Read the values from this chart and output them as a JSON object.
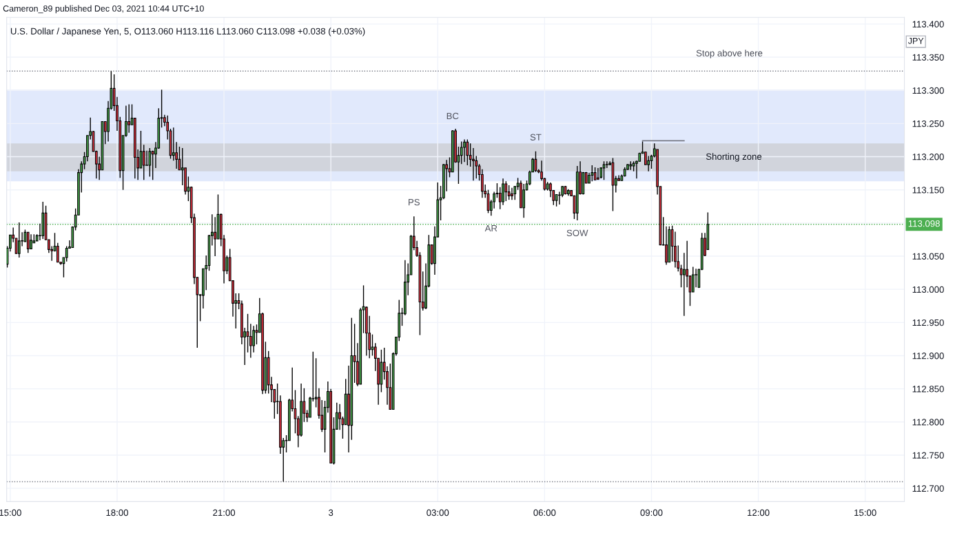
{
  "chart_data": {
    "type": "candlestick",
    "title": "U.S. Dollar / Japanese Yen, 5, O113.060 H113.116 L113.060 C113.098 +0.038 (+0.03%)",
    "annotations": [
      "Cameron_89 published Dec 03, 2021 10:44 UTC+10",
      "JPY",
      {
        "text": "PS",
        "x": "2021-12-03T02:20",
        "y": 113.11
      },
      {
        "text": "BC",
        "x": "2021-12-03T03:25",
        "y": 113.24
      },
      {
        "text": "AR",
        "x": "2021-12-03T04:30",
        "y": 113.111
      },
      {
        "text": "ST",
        "x": "2021-12-03T05:45",
        "y": 113.208
      },
      {
        "text": "SOW",
        "x": "2021-12-03T06:55",
        "y": 113.104
      }
    ],
    "x": [
      "2021-12-02T14:55",
      "2021-12-02T15:00",
      "2021-12-02T15:05",
      "2021-12-02T15:10",
      "2021-12-02T15:15",
      "2021-12-02T15:20",
      "2021-12-02T15:25",
      "2021-12-02T15:30",
      "2021-12-02T15:35",
      "2021-12-02T15:40",
      "2021-12-02T15:45",
      "2021-12-02T15:50",
      "2021-12-02T15:55",
      "2021-12-02T16:00",
      "2021-12-02T16:05",
      "2021-12-02T16:10",
      "2021-12-02T16:15",
      "2021-12-02T16:20",
      "2021-12-02T16:25",
      "2021-12-02T16:30",
      "2021-12-02T16:35",
      "2021-12-02T16:40",
      "2021-12-02T16:45",
      "2021-12-02T16:50",
      "2021-12-02T16:55",
      "2021-12-02T17:00",
      "2021-12-02T17:05",
      "2021-12-02T17:10",
      "2021-12-02T17:15",
      "2021-12-02T17:20",
      "2021-12-02T17:25",
      "2021-12-02T17:30",
      "2021-12-02T17:35",
      "2021-12-02T17:40",
      "2021-12-02T17:45",
      "2021-12-02T17:50",
      "2021-12-02T17:55",
      "2021-12-02T18:00",
      "2021-12-02T18:05",
      "2021-12-02T18:10",
      "2021-12-02T18:15",
      "2021-12-02T18:20",
      "2021-12-02T18:25",
      "2021-12-02T18:30",
      "2021-12-02T18:35",
      "2021-12-02T18:40",
      "2021-12-02T18:45",
      "2021-12-02T18:50",
      "2021-12-02T18:55",
      "2021-12-02T19:00",
      "2021-12-02T19:05",
      "2021-12-02T19:10",
      "2021-12-02T19:15",
      "2021-12-02T19:20",
      "2021-12-02T19:25",
      "2021-12-02T19:30",
      "2021-12-02T19:35",
      "2021-12-02T19:40",
      "2021-12-02T19:45",
      "2021-12-02T19:50",
      "2021-12-02T19:55",
      "2021-12-02T20:00",
      "2021-12-02T20:05",
      "2021-12-02T20:10",
      "2021-12-02T20:15",
      "2021-12-02T20:20",
      "2021-12-02T20:25",
      "2021-12-02T20:30",
      "2021-12-02T20:35",
      "2021-12-02T20:40",
      "2021-12-02T20:45",
      "2021-12-02T20:50",
      "2021-12-02T20:55",
      "2021-12-02T21:00",
      "2021-12-02T21:05",
      "2021-12-02T21:10",
      "2021-12-02T21:15",
      "2021-12-02T21:20",
      "2021-12-02T21:25",
      "2021-12-02T21:30",
      "2021-12-02T21:35",
      "2021-12-02T21:40",
      "2021-12-02T21:45",
      "2021-12-02T21:50",
      "2021-12-02T21:55",
      "2021-12-02T22:00",
      "2021-12-02T22:05",
      "2021-12-02T22:10",
      "2021-12-02T22:15",
      "2021-12-02T22:20",
      "2021-12-02T22:25",
      "2021-12-02T22:30",
      "2021-12-02T22:35",
      "2021-12-02T22:40",
      "2021-12-02T22:45",
      "2021-12-02T22:50",
      "2021-12-02T22:55",
      "2021-12-02T23:00",
      "2021-12-02T23:05",
      "2021-12-02T23:10",
      "2021-12-02T23:15",
      "2021-12-02T23:20",
      "2021-12-02T23:25",
      "2021-12-02T23:30",
      "2021-12-02T23:35",
      "2021-12-02T23:40",
      "2021-12-02T23:45",
      "2021-12-02T23:50",
      "2021-12-02T23:55",
      "2021-12-03T00:00",
      "2021-12-03T00:05",
      "2021-12-03T00:10",
      "2021-12-03T00:15",
      "2021-12-03T00:20",
      "2021-12-03T00:25",
      "2021-12-03T00:30",
      "2021-12-03T00:35",
      "2021-12-03T00:40",
      "2021-12-03T00:45",
      "2021-12-03T00:50",
      "2021-12-03T00:55",
      "2021-12-03T01:00",
      "2021-12-03T01:05",
      "2021-12-03T01:10",
      "2021-12-03T01:15",
      "2021-12-03T01:20",
      "2021-12-03T01:25",
      "2021-12-03T01:30",
      "2021-12-03T01:35",
      "2021-12-03T01:40",
      "2021-12-03T01:45",
      "2021-12-03T01:50",
      "2021-12-03T01:55",
      "2021-12-03T02:00",
      "2021-12-03T02:05",
      "2021-12-03T02:10",
      "2021-12-03T02:15",
      "2021-12-03T02:20",
      "2021-12-03T02:25",
      "2021-12-03T02:30",
      "2021-12-03T02:35",
      "2021-12-03T02:40",
      "2021-12-03T02:45",
      "2021-12-03T02:50",
      "2021-12-03T02:55",
      "2021-12-03T03:00",
      "2021-12-03T03:05",
      "2021-12-03T03:10",
      "2021-12-03T03:15",
      "2021-12-03T03:20",
      "2021-12-03T03:25",
      "2021-12-03T03:30",
      "2021-12-03T03:35",
      "2021-12-03T03:40",
      "2021-12-03T03:45",
      "2021-12-03T03:50",
      "2021-12-03T03:55",
      "2021-12-03T04:00",
      "2021-12-03T04:05",
      "2021-12-03T04:10",
      "2021-12-03T04:15",
      "2021-12-03T04:20",
      "2021-12-03T04:25",
      "2021-12-03T04:30",
      "2021-12-03T04:35",
      "2021-12-03T04:40",
      "2021-12-03T04:45",
      "2021-12-03T04:50",
      "2021-12-03T04:55",
      "2021-12-03T05:00",
      "2021-12-03T05:05",
      "2021-12-03T05:10",
      "2021-12-03T05:15",
      "2021-12-03T05:20",
      "2021-12-03T05:25",
      "2021-12-03T05:30",
      "2021-12-03T05:35",
      "2021-12-03T05:40",
      "2021-12-03T05:45",
      "2021-12-03T05:50",
      "2021-12-03T05:55",
      "2021-12-03T06:00",
      "2021-12-03T06:05",
      "2021-12-03T06:10",
      "2021-12-03T06:15",
      "2021-12-03T06:20",
      "2021-12-03T06:25",
      "2021-12-03T06:30",
      "2021-12-03T06:35",
      "2021-12-03T06:40",
      "2021-12-03T06:45",
      "2021-12-03T06:50",
      "2021-12-03T06:55",
      "2021-12-03T07:00",
      "2021-12-03T07:05",
      "2021-12-03T07:10",
      "2021-12-03T07:15",
      "2021-12-03T07:20",
      "2021-12-03T07:25",
      "2021-12-03T07:30",
      "2021-12-03T07:35",
      "2021-12-03T07:40",
      "2021-12-03T07:45",
      "2021-12-03T07:50",
      "2021-12-03T07:55",
      "2021-12-03T08:00",
      "2021-12-03T08:05",
      "2021-12-03T08:10",
      "2021-12-03T08:15",
      "2021-12-03T08:20",
      "2021-12-03T08:25",
      "2021-12-03T08:30",
      "2021-12-03T08:35",
      "2021-12-03T08:40",
      "2021-12-03T08:45",
      "2021-12-03T08:50",
      "2021-12-03T08:55",
      "2021-12-03T09:00",
      "2021-12-03T09:05",
      "2021-12-03T09:10",
      "2021-12-03T09:15",
      "2021-12-03T09:20",
      "2021-12-03T09:25",
      "2021-12-03T09:30",
      "2021-12-03T09:35",
      "2021-12-03T09:40",
      "2021-12-03T09:45",
      "2021-12-03T09:50",
      "2021-12-03T09:55",
      "2021-12-03T10:00",
      "2021-12-03T10:05",
      "2021-12-03T10:10",
      "2021-12-03T10:15",
      "2021-12-03T10:20",
      "2021-12-03T10:25",
      "2021-12-03T10:30",
      "2021-12-03T10:35"
    ],
    "ohlc": [
      [
        113.038,
        113.065,
        113.033,
        113.062
      ],
      [
        113.062,
        113.082,
        113.057,
        113.082
      ],
      [
        113.082,
        113.093,
        113.071,
        113.077
      ],
      [
        113.077,
        113.077,
        113.054,
        113.054
      ],
      [
        113.054,
        113.101,
        113.048,
        113.073
      ],
      [
        113.073,
        113.086,
        113.065,
        113.073
      ],
      [
        113.072,
        113.09,
        113.072,
        113.086
      ],
      [
        113.086,
        113.086,
        113.055,
        113.061
      ],
      [
        113.061,
        113.083,
        113.061,
        113.074
      ],
      [
        113.07,
        113.083,
        113.07,
        113.073
      ],
      [
        113.073,
        113.083,
        113.073,
        113.081
      ],
      [
        113.081,
        113.099,
        113.074,
        113.081
      ],
      [
        113.081,
        113.132,
        113.076,
        113.115
      ],
      [
        113.115,
        113.126,
        113.074,
        113.075
      ],
      [
        113.075,
        113.075,
        113.055,
        113.06
      ],
      [
        113.06,
        113.065,
        113.043,
        113.058
      ],
      [
        113.058,
        113.085,
        113.057,
        113.065
      ],
      [
        113.065,
        113.07,
        113.041,
        113.041
      ],
      [
        113.041,
        113.041,
        113.037,
        113.039
      ],
      [
        113.039,
        113.048,
        113.018,
        113.048
      ],
      [
        113.048,
        113.065,
        113.042,
        113.062
      ],
      [
        113.062,
        113.074,
        113.062,
        113.064
      ],
      [
        113.063,
        113.095,
        113.063,
        113.094
      ],
      [
        113.094,
        113.122,
        113.089,
        113.112
      ],
      [
        113.112,
        113.181,
        113.112,
        113.176
      ],
      [
        113.176,
        113.193,
        113.146,
        113.189
      ],
      [
        113.189,
        113.207,
        113.181,
        113.2
      ],
      [
        113.2,
        113.232,
        113.193,
        113.232
      ],
      [
        113.232,
        113.259,
        113.226,
        113.238
      ],
      [
        113.238,
        113.239,
        113.208,
        113.208
      ],
      [
        113.208,
        113.209,
        113.167,
        113.189
      ],
      [
        113.189,
        113.2,
        113.165,
        113.18
      ],
      [
        113.18,
        113.253,
        113.18,
        113.253
      ],
      [
        113.253,
        113.253,
        113.219,
        113.238
      ],
      [
        113.238,
        113.284,
        113.223,
        113.273
      ],
      [
        113.273,
        113.329,
        113.271,
        113.303
      ],
      [
        113.303,
        113.324,
        113.269,
        113.277
      ],
      [
        113.277,
        113.29,
        113.239,
        113.254
      ],
      [
        113.254,
        113.26,
        113.168,
        113.179
      ],
      [
        113.179,
        113.232,
        113.15,
        113.232
      ],
      [
        113.232,
        113.277,
        113.23,
        113.253
      ],
      [
        113.253,
        113.279,
        113.236,
        113.248
      ],
      [
        113.248,
        113.279,
        113.248,
        113.258
      ],
      [
        113.258,
        113.258,
        113.167,
        113.199
      ],
      [
        113.199,
        113.211,
        113.165,
        113.183
      ],
      [
        113.183,
        113.239,
        113.183,
        113.208
      ],
      [
        113.208,
        113.218,
        113.165,
        113.187
      ],
      [
        113.187,
        113.209,
        113.187,
        113.187
      ],
      [
        113.187,
        113.213,
        113.17,
        113.208
      ],
      [
        113.208,
        113.209,
        113.165,
        113.204
      ],
      [
        113.204,
        113.222,
        113.183,
        113.213
      ],
      [
        113.213,
        113.273,
        113.212,
        113.258
      ],
      [
        113.258,
        113.301,
        113.244,
        113.259
      ],
      [
        113.259,
        113.263,
        113.246,
        113.252
      ],
      [
        113.252,
        113.262,
        113.226,
        113.239
      ],
      [
        113.239,
        113.242,
        113.197,
        113.202
      ],
      [
        113.202,
        113.244,
        113.194,
        113.206
      ],
      [
        113.206,
        113.222,
        113.182,
        113.196
      ],
      [
        113.196,
        113.215,
        113.18,
        113.18
      ],
      [
        113.18,
        113.213,
        113.157,
        113.183
      ],
      [
        113.183,
        113.183,
        113.143,
        113.148
      ],
      [
        113.148,
        113.17,
        113.133,
        113.154
      ],
      [
        113.154,
        113.155,
        113.1,
        113.108
      ],
      [
        113.108,
        113.114,
        113.008,
        113.018
      ],
      [
        113.018,
        113.018,
        112.912,
        112.992
      ],
      [
        112.992,
        112.992,
        112.952,
        112.991
      ],
      [
        112.991,
        113.031,
        112.971,
        113.031
      ],
      [
        113.031,
        113.051,
        112.999,
        113.036
      ],
      [
        113.036,
        113.082,
        113.028,
        113.081
      ],
      [
        113.081,
        113.113,
        113.066,
        113.086
      ],
      [
        113.086,
        113.109,
        113.05,
        113.076
      ],
      [
        113.076,
        113.143,
        113.076,
        113.113
      ],
      [
        113.113,
        113.114,
        113.065,
        113.076
      ],
      [
        113.076,
        113.082,
        113.009,
        113.028
      ],
      [
        113.028,
        113.051,
        113.023,
        113.048
      ],
      [
        113.048,
        113.061,
        113.013,
        113.013
      ],
      [
        113.013,
        113.013,
        112.959,
        112.979
      ],
      [
        112.979,
        112.994,
        112.941,
        112.983
      ],
      [
        112.983,
        112.994,
        112.97,
        112.979
      ],
      [
        112.978,
        112.983,
        112.917,
        112.928
      ],
      [
        112.928,
        112.942,
        112.886,
        112.936
      ],
      [
        112.936,
        112.963,
        112.905,
        112.929
      ],
      [
        112.929,
        112.948,
        112.897,
        112.915
      ],
      [
        112.915,
        112.945,
        112.905,
        112.938
      ],
      [
        112.938,
        112.947,
        112.917,
        112.935
      ],
      [
        112.935,
        112.987,
        112.935,
        112.963
      ],
      [
        112.963,
        112.965,
        112.842,
        112.848
      ],
      [
        112.848,
        112.921,
        112.843,
        112.897
      ],
      [
        112.897,
        112.907,
        112.843,
        112.856
      ],
      [
        112.856,
        112.868,
        112.83,
        112.849
      ],
      [
        112.849,
        112.849,
        112.805,
        112.83
      ],
      [
        112.831,
        112.858,
        112.812,
        112.831
      ],
      [
        112.831,
        112.84,
        112.752,
        112.762
      ],
      [
        112.762,
        112.776,
        112.71,
        112.772
      ],
      [
        112.772,
        112.78,
        112.754,
        112.772
      ],
      [
        112.772,
        112.835,
        112.772,
        112.833
      ],
      [
        112.833,
        112.882,
        112.816,
        112.82
      ],
      [
        112.82,
        112.848,
        112.783,
        112.805
      ],
      [
        112.805,
        112.809,
        112.762,
        112.78
      ],
      [
        112.78,
        112.858,
        112.778,
        112.831
      ],
      [
        112.831,
        112.851,
        112.8,
        112.813
      ],
      [
        112.813,
        112.818,
        112.8,
        112.807
      ],
      [
        112.807,
        112.838,
        112.807,
        112.836
      ],
      [
        112.835,
        112.906,
        112.831,
        112.835
      ],
      [
        112.835,
        112.896,
        112.822,
        112.837
      ],
      [
        112.837,
        112.851,
        112.805,
        112.81
      ],
      [
        112.81,
        112.833,
        112.785,
        112.789
      ],
      [
        112.789,
        112.832,
        112.754,
        112.822
      ],
      [
        112.822,
        112.861,
        112.814,
        112.846
      ],
      [
        112.846,
        112.85,
        112.738,
        112.738
      ],
      [
        112.738,
        112.807,
        112.736,
        112.789
      ],
      [
        112.789,
        112.829,
        112.789,
        112.814
      ],
      [
        112.814,
        112.827,
        112.788,
        112.805
      ],
      [
        112.805,
        112.808,
        112.775,
        112.796
      ],
      [
        112.796,
        112.865,
        112.796,
        112.842
      ],
      [
        112.842,
        112.885,
        112.754,
        112.795
      ],
      [
        112.795,
        112.957,
        112.773,
        112.9
      ],
      [
        112.9,
        112.948,
        112.859,
        112.891
      ],
      [
        112.891,
        112.919,
        112.854,
        112.857
      ],
      [
        112.857,
        112.972,
        112.857,
        112.969
      ],
      [
        112.969,
        113.006,
        112.934,
        112.974
      ],
      [
        112.973,
        112.974,
        112.9,
        112.934
      ],
      [
        112.934,
        112.96,
        112.896,
        112.909
      ],
      [
        112.909,
        112.932,
        112.9,
        112.913
      ],
      [
        112.913,
        112.919,
        112.877,
        112.896
      ],
      [
        112.896,
        112.896,
        112.826,
        112.857
      ],
      [
        112.857,
        112.909,
        112.845,
        112.89
      ],
      [
        112.89,
        112.912,
        112.864,
        112.876
      ],
      [
        112.876,
        112.884,
        112.826,
        112.852
      ],
      [
        112.852,
        112.888,
        112.819,
        112.819
      ],
      [
        112.819,
        112.905,
        112.819,
        112.903
      ],
      [
        112.903,
        112.928,
        112.9,
        112.928
      ],
      [
        112.928,
        112.984,
        112.922,
        112.964
      ],
      [
        112.964,
        112.972,
        112.945,
        112.964
      ],
      [
        112.963,
        113.044,
        112.961,
        113.011
      ],
      [
        113.011,
        113.039,
        112.991,
        113.022
      ],
      [
        113.022,
        113.082,
        113.022,
        113.08
      ],
      [
        113.08,
        113.11,
        113.059,
        113.063
      ],
      [
        113.063,
        113.073,
        113.049,
        113.051
      ],
      [
        113.051,
        113.056,
        112.931,
        112.981
      ],
      [
        112.981,
        113.027,
        112.968,
        112.972
      ],
      [
        112.972,
        113.039,
        112.97,
        113.005
      ],
      [
        113.005,
        113.082,
        113.003,
        113.067
      ],
      [
        113.067,
        113.067,
        113.037,
        113.039
      ],
      [
        113.039,
        113.095,
        113.022,
        113.079
      ],
      [
        113.079,
        113.161,
        113.079,
        113.135
      ],
      [
        113.135,
        113.156,
        113.104,
        113.138
      ],
      [
        113.138,
        113.189,
        113.136,
        113.188
      ],
      [
        113.188,
        113.195,
        113.148,
        113.182
      ],
      [
        113.182,
        113.199,
        113.169,
        113.177
      ],
      [
        113.177,
        113.24,
        113.177,
        113.239
      ],
      [
        113.239,
        113.242,
        113.191,
        113.192
      ],
      [
        113.192,
        113.215,
        113.159,
        113.202
      ],
      [
        113.202,
        113.223,
        113.189,
        113.214
      ],
      [
        113.214,
        113.226,
        113.192,
        113.222
      ],
      [
        113.222,
        113.226,
        113.187,
        113.202
      ],
      [
        113.202,
        113.22,
        113.185,
        113.196
      ],
      [
        113.196,
        113.213,
        113.164,
        113.194
      ],
      [
        113.194,
        113.201,
        113.167,
        113.186
      ],
      [
        113.186,
        113.189,
        113.164,
        113.173
      ],
      [
        113.173,
        113.181,
        113.138,
        113.148
      ],
      [
        113.148,
        113.158,
        113.138,
        113.144
      ],
      [
        113.144,
        113.15,
        113.115,
        113.119
      ],
      [
        113.119,
        113.135,
        113.111,
        113.132
      ],
      [
        113.132,
        113.147,
        113.122,
        113.144
      ],
      [
        113.144,
        113.16,
        113.138,
        113.145
      ],
      [
        113.145,
        113.154,
        113.121,
        113.132
      ],
      [
        113.132,
        113.167,
        113.127,
        113.159
      ],
      [
        113.159,
        113.163,
        113.133,
        113.147
      ],
      [
        113.147,
        113.157,
        113.135,
        113.141
      ],
      [
        113.144,
        113.153,
        113.135,
        113.141
      ],
      [
        113.144,
        113.156,
        113.135,
        113.155
      ],
      [
        113.155,
        113.168,
        113.15,
        113.16
      ],
      [
        113.16,
        113.164,
        113.123,
        113.123
      ],
      [
        113.123,
        113.159,
        113.108,
        113.15
      ],
      [
        113.15,
        113.164,
        113.149,
        113.159
      ],
      [
        113.159,
        113.179,
        113.157,
        113.177
      ],
      [
        113.177,
        113.198,
        113.177,
        113.196
      ],
      [
        113.196,
        113.208,
        113.177,
        113.179
      ],
      [
        113.179,
        113.181,
        113.175,
        113.177
      ],
      [
        113.177,
        113.194,
        113.164,
        113.167
      ],
      [
        113.167,
        113.168,
        113.149,
        113.151
      ],
      [
        113.151,
        113.162,
        113.149,
        113.159
      ],
      [
        113.159,
        113.161,
        113.139,
        113.149
      ],
      [
        113.149,
        113.149,
        113.127,
        113.134
      ],
      [
        113.134,
        113.143,
        113.125,
        113.143
      ],
      [
        113.142,
        113.147,
        113.128,
        113.142
      ],
      [
        113.142,
        113.156,
        113.139,
        113.155
      ],
      [
        113.155,
        113.156,
        113.143,
        113.144
      ],
      [
        113.144,
        113.151,
        113.141,
        113.149
      ],
      [
        113.149,
        113.149,
        113.141,
        113.141
      ],
      [
        113.141,
        113.141,
        113.106,
        113.115
      ],
      [
        113.115,
        113.186,
        113.104,
        113.177
      ],
      [
        113.177,
        113.193,
        113.143,
        113.144
      ],
      [
        113.144,
        113.177,
        113.143,
        113.176
      ],
      [
        113.176,
        113.177,
        113.16,
        113.16
      ],
      [
        113.16,
        113.176,
        113.16,
        113.172
      ],
      [
        113.172,
        113.187,
        113.163,
        113.176
      ],
      [
        113.176,
        113.184,
        113.165,
        113.165
      ],
      [
        113.168,
        113.183,
        113.165,
        113.166
      ],
      [
        113.169,
        113.184,
        113.167,
        113.183
      ],
      [
        113.183,
        113.193,
        113.165,
        113.188
      ],
      [
        113.188,
        113.193,
        113.183,
        113.188
      ],
      [
        113.188,
        113.193,
        113.187,
        113.19
      ],
      [
        113.191,
        113.198,
        113.118,
        113.157
      ],
      [
        113.157,
        113.171,
        113.146,
        113.167
      ],
      [
        113.167,
        113.172,
        113.164,
        113.164
      ],
      [
        113.164,
        113.173,
        113.164,
        113.171
      ],
      [
        113.171,
        113.184,
        113.17,
        113.181
      ],
      [
        113.181,
        113.189,
        113.18,
        113.188
      ],
      [
        113.186,
        113.193,
        113.18,
        113.188
      ],
      [
        113.186,
        113.193,
        113.178,
        113.19
      ],
      [
        113.19,
        113.194,
        113.167,
        113.193
      ],
      [
        113.193,
        113.206,
        113.193,
        113.205
      ],
      [
        113.205,
        113.223,
        113.205,
        113.207
      ],
      [
        113.207,
        113.207,
        113.188,
        113.188
      ],
      [
        113.188,
        113.201,
        113.178,
        113.194
      ],
      [
        113.194,
        113.203,
        113.182,
        113.201
      ],
      [
        113.201,
        113.22,
        113.199,
        113.212
      ],
      [
        113.211,
        113.211,
        113.143,
        113.155
      ],
      [
        113.155,
        113.155,
        113.067,
        113.067
      ],
      [
        113.067,
        113.109,
        113.066,
        113.067
      ],
      [
        113.067,
        113.095,
        113.037,
        113.041
      ],
      [
        113.041,
        113.095,
        113.041,
        113.09
      ],
      [
        113.09,
        113.096,
        113.042,
        113.065
      ],
      [
        113.065,
        113.087,
        113.033,
        113.042
      ],
      [
        113.042,
        113.066,
        113.027,
        113.032
      ],
      [
        113.031,
        113.037,
        113.003,
        113.022
      ],
      [
        113.022,
        113.055,
        112.96,
        113.03
      ],
      [
        113.03,
        113.073,
        113.003,
        113.02
      ],
      [
        113.02,
        113.021,
        112.975,
        112.996
      ],
      [
        112.996,
        113.034,
        112.996,
        113.022
      ],
      [
        113.022,
        113.031,
        113.003,
        113.022
      ],
      [
        113.003,
        113.031,
        113.002,
        113.03
      ],
      [
        113.03,
        113.085,
        113.029,
        113.077
      ],
      [
        113.077,
        113.085,
        113.05,
        113.051
      ],
      [
        113.06,
        113.116,
        113.06,
        113.098
      ]
    ],
    "series": [
      {
        "type": "line",
        "color": "#787b86",
        "x": [
          "2021-12-03T08:45",
          "2021-12-03T09:55"
        ],
        "values": [
          113.224,
          113.224
        ]
      }
    ],
    "bands": [
      {
        "axis": "y",
        "from": 113.163,
        "to": 113.301,
        "color": "#e1e9fc"
      },
      {
        "axis": "y",
        "from": 113.178,
        "to": 113.22,
        "color": "#d1d4dc",
        "label": "Shorting zone"
      }
    ],
    "ref_lines": [
      {
        "axis": "y",
        "value": 113.329,
        "label": "Stop above here",
        "color": "#787b86",
        "line_style": "dotted"
      },
      {
        "axis": "y",
        "value": 113.098,
        "label": "113.098",
        "color": "#4caf50",
        "line_style": "dotted"
      },
      {
        "axis": "y",
        "value": 112.71,
        "color": "#787b86",
        "line_style": "dotted"
      }
    ],
    "xlim": [
      "2021-12-02T14:54",
      "2021-12-03T16:06"
    ],
    "xticks": [
      {
        "value": "2021-12-02T15:00",
        "label": "15:00"
      },
      {
        "value": "2021-12-02T18:00",
        "label": "18:00"
      },
      {
        "value": "2021-12-02T21:00",
        "label": "21:00"
      },
      {
        "value": "2021-12-03T00:00",
        "label": "3"
      },
      {
        "value": "2021-12-03T03:00",
        "label": "03:00"
      },
      {
        "value": "2021-12-03T06:00",
        "label": "06:00"
      },
      {
        "value": "2021-12-03T09:00",
        "label": "09:00"
      },
      {
        "value": "2021-12-03T12:00",
        "label": "12:00"
      },
      {
        "value": "2021-12-03T15:00",
        "label": "15:00"
      }
    ],
    "ylim": [
      112.68,
      113.41
    ],
    "yticks": [
      {
        "value": 112.7,
        "label": "112.700"
      },
      {
        "value": 112.75,
        "label": "112.750"
      },
      {
        "value": 112.8,
        "label": "112.800"
      },
      {
        "value": 112.85,
        "label": "112.850"
      },
      {
        "value": 112.9,
        "label": "112.900"
      },
      {
        "value": 112.95,
        "label": "112.950"
      },
      {
        "value": 113.0,
        "label": "113.000"
      },
      {
        "value": 113.05,
        "label": "113.050"
      },
      {
        "value": 113.1,
        "label": null
      },
      {
        "value": 113.15,
        "label": "113.150"
      },
      {
        "value": 113.2,
        "label": "113.200"
      },
      {
        "value": 113.25,
        "label": "113.250"
      },
      {
        "value": 113.3,
        "label": "113.300"
      },
      {
        "value": 113.35,
        "label": "113.350"
      },
      {
        "value": 113.4,
        "label": "113.400"
      }
    ],
    "grid": true
  }
}
